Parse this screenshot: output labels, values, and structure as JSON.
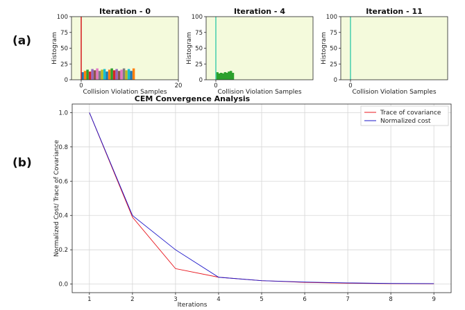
{
  "panel_labels": {
    "a": "(a)",
    "b": "(b)"
  },
  "chart_data": [
    {
      "type": "bar",
      "panel": "a",
      "title": "Iteration - 0",
      "xlabel": "Collision Violation Samples",
      "ylabel": "Histogram",
      "xlim": [
        -2,
        20
      ],
      "ylim": [
        0,
        100
      ],
      "xticks": [
        0,
        20
      ],
      "yticks": [
        0,
        25,
        50,
        75,
        100
      ],
      "background": "#f4fadc",
      "spike": {
        "x": 0,
        "value": 100,
        "color": "#d62728"
      },
      "bar_colors": [
        "#1f77b4",
        "#ff7f0e",
        "#2ca02c",
        "#d62728",
        "#9467bd",
        "#8c564b",
        "#e377c2",
        "#7f7f7f",
        "#bcbd22",
        "#17becf"
      ],
      "bars": [
        {
          "x": 0.3,
          "value": 12
        },
        {
          "x": 0.8,
          "value": 14
        },
        {
          "x": 1.3,
          "value": 16
        },
        {
          "x": 1.8,
          "value": 13
        },
        {
          "x": 2.3,
          "value": 17
        },
        {
          "x": 2.8,
          "value": 15
        },
        {
          "x": 3.3,
          "value": 18
        },
        {
          "x": 3.8,
          "value": 14
        },
        {
          "x": 4.3,
          "value": 16
        },
        {
          "x": 4.8,
          "value": 17
        },
        {
          "x": 5.3,
          "value": 13
        },
        {
          "x": 5.8,
          "value": 16
        },
        {
          "x": 6.3,
          "value": 18
        },
        {
          "x": 6.8,
          "value": 15
        },
        {
          "x": 7.3,
          "value": 17
        },
        {
          "x": 7.8,
          "value": 14
        },
        {
          "x": 8.3,
          "value": 16
        },
        {
          "x": 8.8,
          "value": 18
        },
        {
          "x": 9.3,
          "value": 15
        },
        {
          "x": 9.8,
          "value": 17
        },
        {
          "x": 10.3,
          "value": 14
        },
        {
          "x": 10.8,
          "value": 18
        }
      ]
    },
    {
      "type": "bar",
      "panel": "a",
      "title": "Iteration - 4",
      "xlabel": "Collision Violation Samples",
      "ylabel": "Histogram",
      "xlim": [
        -2,
        20
      ],
      "ylim": [
        0,
        100
      ],
      "xticks": [
        0
      ],
      "yticks": [
        0,
        25,
        50,
        75,
        100
      ],
      "background": "#f4fadc",
      "spike": {
        "x": 0,
        "value": 100,
        "color": "#4fd1b0"
      },
      "bar_colors": [
        "#2ca02c"
      ],
      "bars": [
        {
          "x": 0.3,
          "value": 12
        },
        {
          "x": 0.7,
          "value": 10
        },
        {
          "x": 1.1,
          "value": 11
        },
        {
          "x": 1.5,
          "value": 10
        },
        {
          "x": 1.9,
          "value": 12
        },
        {
          "x": 2.3,
          "value": 11
        },
        {
          "x": 2.7,
          "value": 13
        },
        {
          "x": 3.1,
          "value": 14
        },
        {
          "x": 3.5,
          "value": 11
        }
      ]
    },
    {
      "type": "bar",
      "panel": "a",
      "title": "Iteration - 11",
      "xlabel": "Collision Violation Samples",
      "ylabel": "Histogram",
      "xlim": [
        -2,
        20
      ],
      "ylim": [
        0,
        100
      ],
      "xticks": [
        0
      ],
      "yticks": [
        0,
        25,
        50,
        75,
        100
      ],
      "background": "#f4fadc",
      "spike": {
        "x": 0,
        "value": 100,
        "color": "#4fd1b0"
      },
      "bar_colors": [],
      "bars": []
    },
    {
      "type": "line",
      "panel": "b",
      "title": "CEM Convergence Analysis",
      "xlabel": "Iterations",
      "ylabel": "Normalized Cost/ Trace of Covariance",
      "x": [
        1,
        2,
        3,
        4,
        5,
        6,
        7,
        8,
        9
      ],
      "xlim": [
        0.6,
        9.4
      ],
      "ylim": [
        -0.05,
        1.05
      ],
      "xticks": [
        1,
        2,
        3,
        4,
        5,
        6,
        7,
        8,
        9
      ],
      "yticks": [
        0.0,
        0.2,
        0.4,
        0.6,
        0.8,
        1.0
      ],
      "ytick_labels": [
        "0.0",
        "0.2",
        "0.4",
        "0.6",
        "0.8",
        "1.0"
      ],
      "grid": true,
      "legend_position": "top-right",
      "series": [
        {
          "name": "Trace of covariance",
          "color": "#e8141c",
          "values": [
            1.0,
            0.39,
            0.09,
            0.04,
            0.02,
            0.01,
            0.005,
            0.003,
            0.002
          ]
        },
        {
          "name": "Normalized cost",
          "color": "#1a14c8",
          "values": [
            1.0,
            0.4,
            0.2,
            0.04,
            0.02,
            0.012,
            0.007,
            0.004,
            0.003
          ]
        }
      ]
    }
  ]
}
